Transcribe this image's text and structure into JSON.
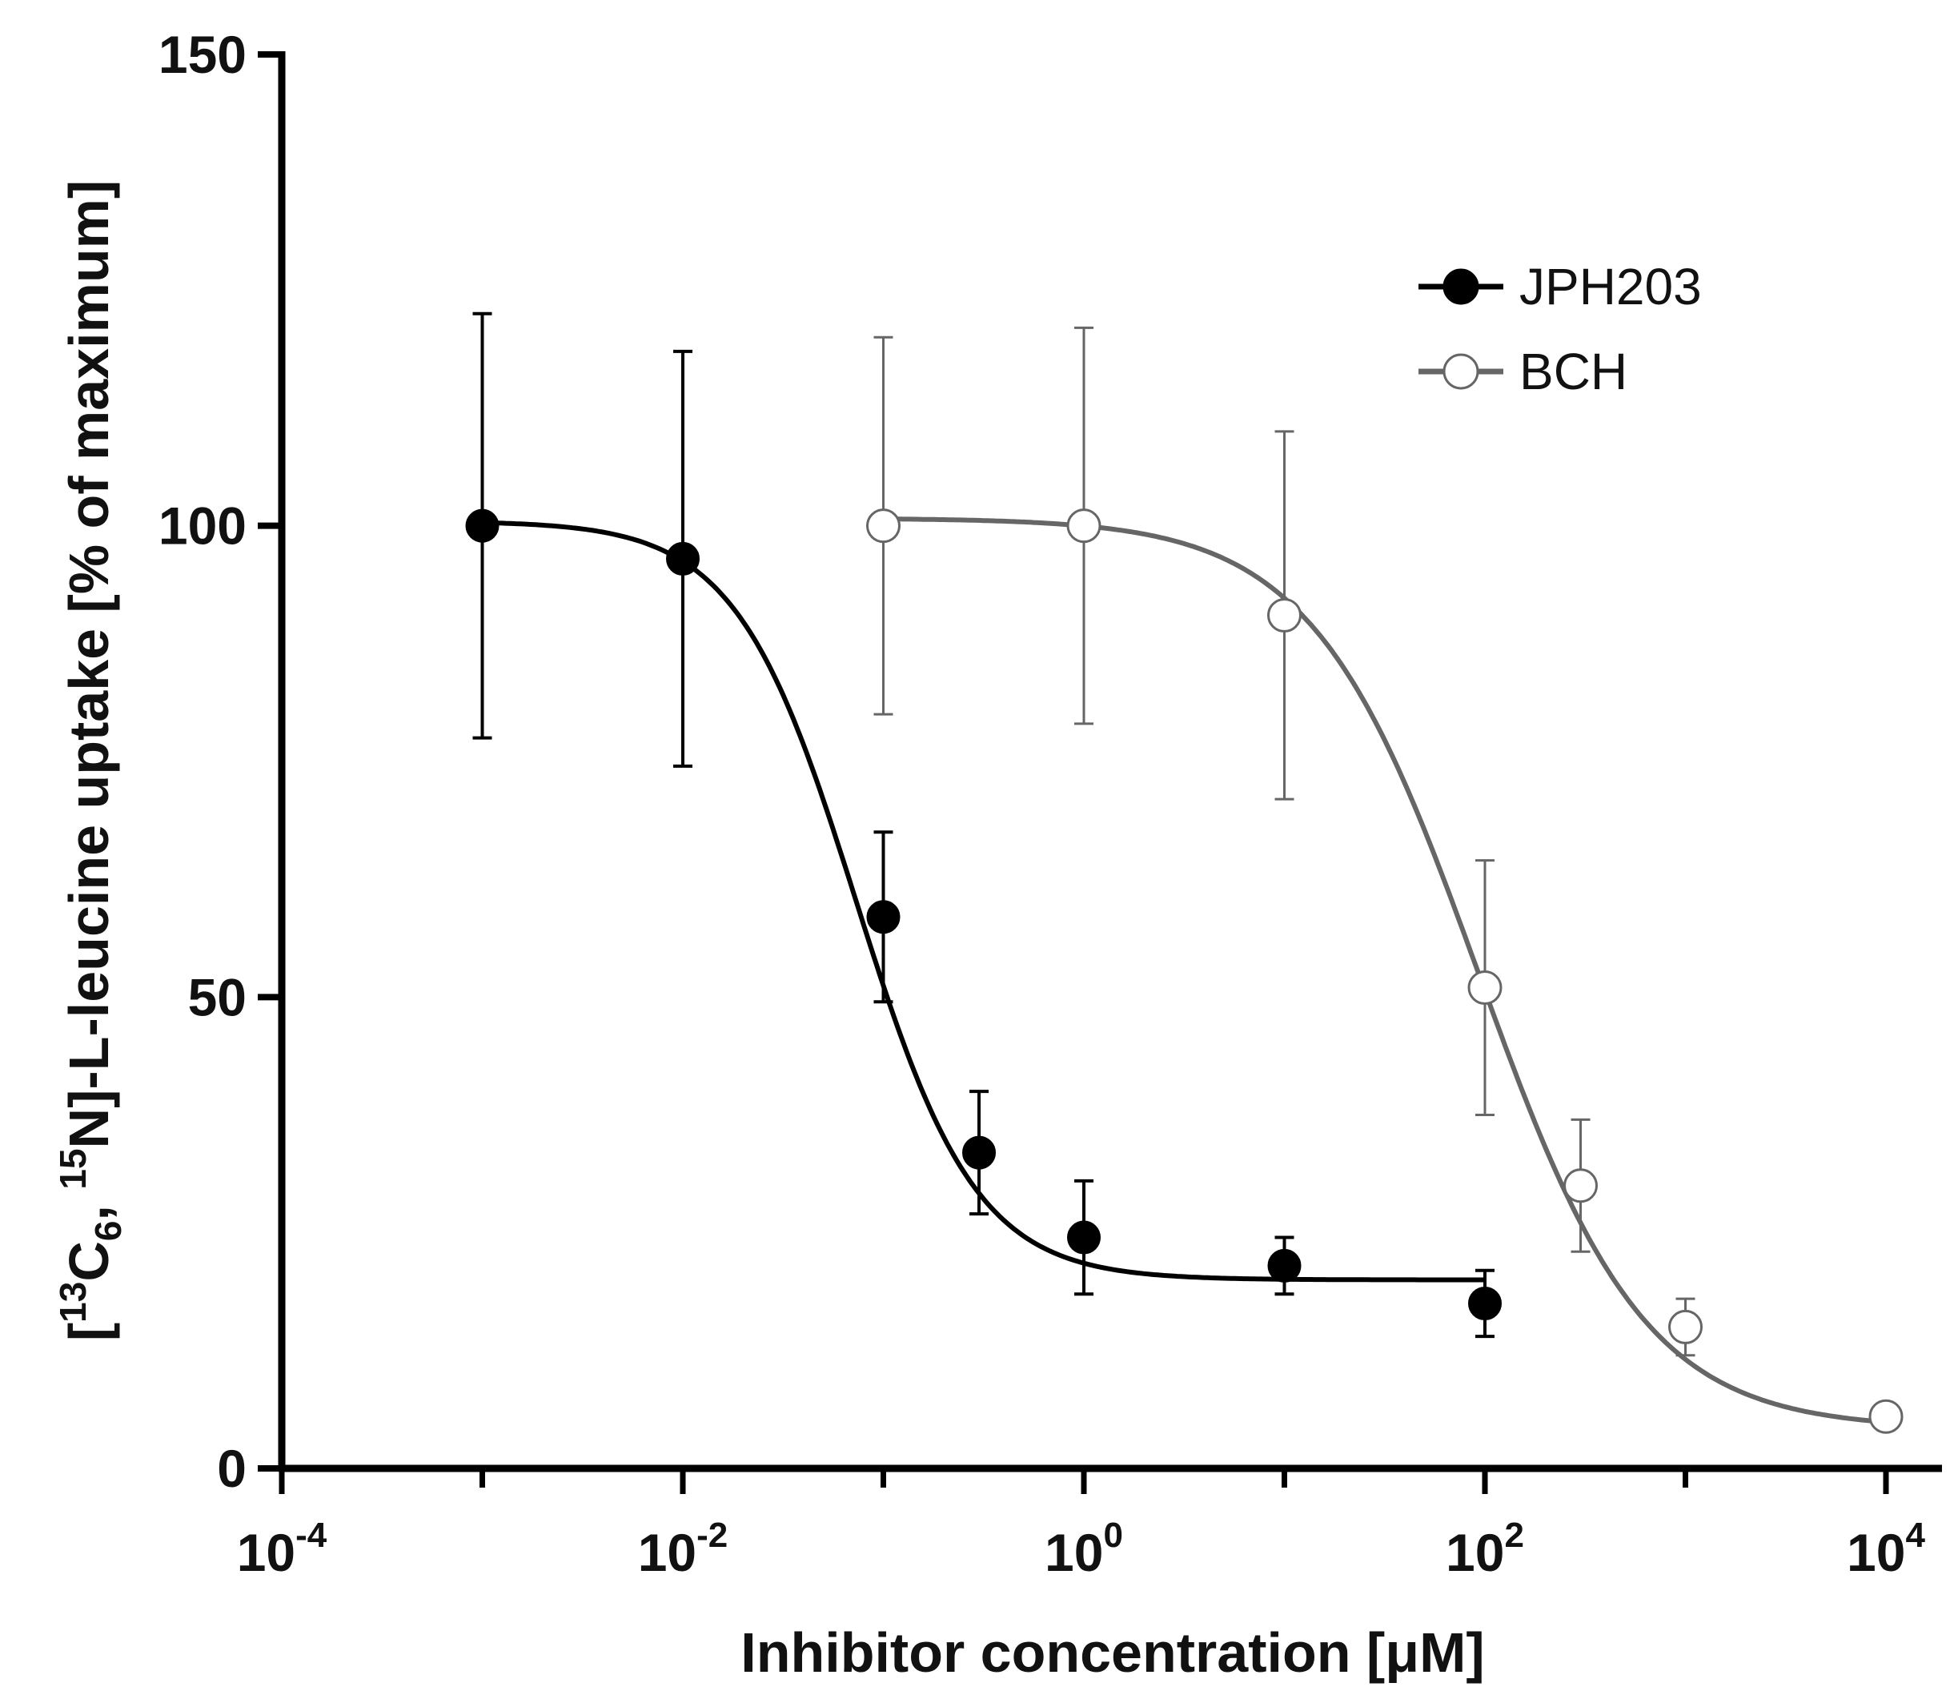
{
  "chart_data": {
    "type": "scatter",
    "title": "",
    "x_scale": "log10",
    "xlabel": "Inhibitor concentration [μM]",
    "ylabel_parts": {
      "bracket_open": "[",
      "sup1": "13",
      "c": "C",
      "sub": "6",
      "comma": ", ",
      "sup2": "15",
      "rest": "N]-L-leucine uptake [% of maximum]"
    },
    "xlim": [
      0.0001,
      10000
    ],
    "ylim": [
      0,
      150
    ],
    "x_ticks": [
      {
        "value": 0.0001,
        "base": "10",
        "exp": "-4"
      },
      {
        "value": 0.01,
        "base": "10",
        "exp": "-2"
      },
      {
        "value": 1,
        "base": "10",
        "exp": "0"
      },
      {
        "value": 100,
        "base": "10",
        "exp": "2"
      },
      {
        "value": 10000,
        "base": "10",
        "exp": "4"
      }
    ],
    "y_ticks": [
      {
        "value": 0,
        "label": "0"
      },
      {
        "value": 50,
        "label": "50"
      },
      {
        "value": 100,
        "label": "100"
      },
      {
        "value": 150,
        "label": "150"
      }
    ],
    "legend_position": "top-right",
    "series": [
      {
        "name": "JPH203",
        "color": "#000000",
        "marker": "filled-circle",
        "x": [
          0.001,
          0.01,
          0.1,
          0.3,
          1,
          10,
          100
        ],
        "y": [
          100,
          96.5,
          58.5,
          33.5,
          24.5,
          21.5,
          17.5
        ],
        "err": [
          22.5,
          22,
          9,
          6.5,
          6,
          3,
          3.5
        ],
        "fit": {
          "top": 100.5,
          "bottom": 20.0,
          "ic50": 0.073,
          "hill": 1.45,
          "x_from": 0.001,
          "x_to": 100
        }
      },
      {
        "name": "BCH",
        "color": "#666666",
        "marker": "open-circle",
        "x": [
          0.1,
          1,
          10,
          100,
          300,
          1000,
          10000
        ],
        "y": [
          100,
          100,
          90.5,
          51,
          30,
          15,
          5.5
        ],
        "err": [
          20,
          21,
          19.5,
          13.5,
          7,
          3,
          0
        ],
        "fit": {
          "top": 100.8,
          "bottom": 4.2,
          "ic50": 93,
          "hill": 1.05,
          "x_from": 0.1,
          "x_to": 10000
        }
      }
    ]
  }
}
